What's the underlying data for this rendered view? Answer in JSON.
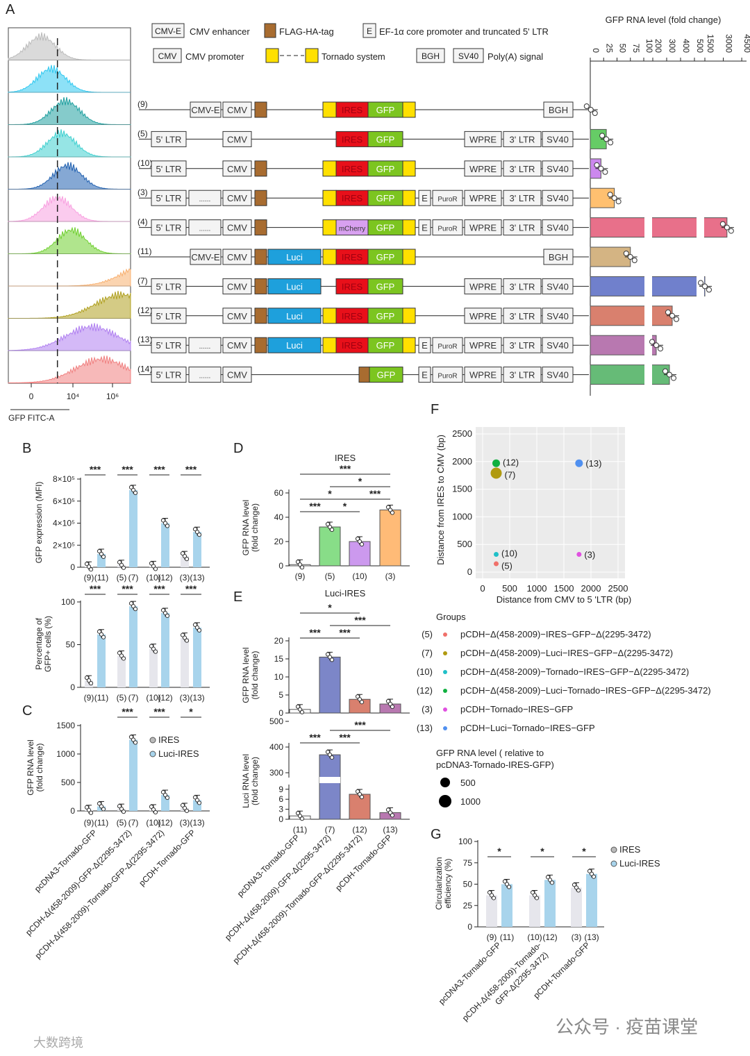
{
  "panel_labels": {
    "a": "A",
    "b": "B",
    "c": "C",
    "d": "D",
    "e": "E",
    "f": "F",
    "g": "G"
  },
  "legend_a": {
    "cmve_box": "CMV-E",
    "cmve_text": "CMV enhancer",
    "flag_text": "FLAG-HA-tag",
    "e_box": "E",
    "e_text": "EF-1α core promoter and truncated 5' LTR",
    "cmv_box": "CMV",
    "cmv_text": "CMV promoter",
    "tornado_text": "Tornado system",
    "bgh_box": "BGH",
    "sv40_box": "SV40",
    "polya_text": "Poly(A) signal"
  },
  "segment_labels": {
    "ltr5": "5' LTR",
    "dots": "......",
    "cmve": "CMV-E",
    "cmv": "CMV",
    "luci": "Luci",
    "ires": "IRES",
    "mcherry": "mCherry",
    "gfp": "GFP",
    "gfp2": "GFP",
    "e": "E",
    "puro": "PuroR",
    "wpre": "WPRE",
    "ltr3": "3' LTR",
    "sv40": "SV40",
    "bgh": "BGH"
  },
  "colors": {
    "flag": "#a86c30",
    "luci": "#1ea0dc",
    "tornado": "#ffe000",
    "ires": "#e8101a",
    "gfp": "#7cc520",
    "mcherry": "#d8a0f0",
    "box": "#f4f4f4",
    "gray_bar": "#e6e6ec",
    "blue_bar": "#a8d4ec"
  },
  "constructs": [
    {
      "id": "(9)",
      "segments": [
        "cmve",
        "cmv",
        "flag",
        "y1",
        "ires",
        "gfp",
        "y2",
        "bgh"
      ],
      "gfp_rna": 1,
      "color": "#ffffff"
    },
    {
      "id": "(5)",
      "segments": [
        "ltr5",
        "cmv",
        "ires",
        "gfp",
        "wpre",
        "ltr3",
        "sv40"
      ],
      "gfp_rna": 30,
      "color": "#66cc66"
    },
    {
      "id": "(10)",
      "segments": [
        "ltr5",
        "cmv",
        "flag",
        "y1",
        "ires",
        "gfp",
        "y2",
        "wpre",
        "ltr3",
        "sv40"
      ],
      "gfp_rna": 20,
      "color": "#cc88ee"
    },
    {
      "id": "(3)",
      "segments": [
        "ltr5",
        "dots",
        "cmv",
        "flag",
        "y1",
        "ires",
        "gfp",
        "y2",
        "e",
        "puro",
        "wpre",
        "ltr3",
        "sv40"
      ],
      "gfp_rna": 45,
      "color": "#ffc070"
    },
    {
      "id": "(4)",
      "segments": [
        "ltr5",
        "dots",
        "cmv",
        "flag",
        "y1",
        "mcherry",
        "gfp",
        "y2",
        "e",
        "puro",
        "wpre",
        "ltr3",
        "sv40"
      ],
      "gfp_rna": 3300,
      "color": "#e8708a"
    },
    {
      "id": "(11)",
      "segments": [
        "cmve",
        "cmv",
        "flag",
        "luci",
        "y1",
        "ires",
        "gfp",
        "y2",
        "bgh"
      ],
      "gfp_rna": 75,
      "color": "#d4b483"
    },
    {
      "id": "(7)",
      "segments": [
        "ltr5",
        "cmv",
        "flag",
        "luci",
        "ires",
        "gfp",
        "wpre",
        "ltr3",
        "sv40"
      ],
      "gfp_rna": 1500,
      "color": "#7080cc"
    },
    {
      "id": "(12)",
      "segments": [
        "ltr5",
        "cmv",
        "flag",
        "luci",
        "y1",
        "ires",
        "gfp",
        "y2",
        "wpre",
        "ltr3",
        "sv40"
      ],
      "gfp_rna": 340,
      "color": "#d9806e"
    },
    {
      "id": "(13)",
      "segments": [
        "ltr5",
        "dots",
        "cmv",
        "flag",
        "luci",
        "y1",
        "ires",
        "gfp",
        "y2",
        "e",
        "puro",
        "wpre",
        "ltr3",
        "sv40"
      ],
      "gfp_rna": 225,
      "color": "#b878b0"
    },
    {
      "id": "(14)",
      "segments": [
        "ltr5",
        "dots",
        "cmv",
        "flag2",
        "gfp2",
        "e",
        "puro",
        "wpre",
        "ltr3",
        "sv40"
      ],
      "gfp_rna": 320,
      "color": "#66bb77"
    }
  ],
  "chart_data": [
    {
      "id": "a-histogram",
      "type": "area",
      "xlabel": "GFP FITC-A",
      "xticks": [
        "0",
        "10⁴",
        "10⁶"
      ],
      "series_colors": [
        "#bbbbbb",
        "#30c8f0",
        "#20a0a0",
        "#40d0d0",
        "#2060b0",
        "#f8a0e0",
        "#70d030",
        "#f8b070",
        "#b0a020",
        "#b080f0",
        "#f08080"
      ],
      "peaks_log10": [
        0.5,
        1.0,
        1.7,
        1.5,
        1.8,
        1.3,
        2.0,
        6.0,
        4.5,
        3.0,
        3.5
      ],
      "gate_log10": 1.3
    },
    {
      "id": "a-gfp-rna",
      "type": "bar",
      "title": "GFP RNA level (fold change)",
      "xticks": [
        "0",
        "25",
        "50",
        "75",
        "100",
        "200",
        "300",
        "400",
        "500",
        "1500",
        "3000",
        "4500"
      ],
      "categories": [
        "(9)",
        "(5)",
        "(10)",
        "(3)",
        "(4)",
        "(11)",
        "(7)",
        "(12)",
        "(13)",
        "(14)"
      ],
      "values": [
        1,
        30,
        20,
        45,
        3300,
        75,
        1500,
        340,
        225,
        320
      ]
    },
    {
      "id": "b-mfi",
      "type": "bar",
      "ylabel": [
        "GFP expression (MFI)"
      ],
      "yticks": [
        "0",
        "2×10⁵",
        "4×10⁵",
        "6×10⁵",
        "8×10⁵"
      ],
      "ytick_values": [
        0,
        200000,
        400000,
        600000,
        800000
      ],
      "ylim": [
        0,
        800000
      ],
      "categories": [
        "(9)",
        "(11)",
        "(5)",
        "(7)",
        "(10)",
        "(12)",
        "(3)",
        "(13)"
      ],
      "values": [
        5000,
        120000,
        20000,
        700000,
        10000,
        400000,
        100000,
        320000
      ],
      "pair_sig": [
        "***",
        "***",
        "***",
        "***"
      ]
    },
    {
      "id": "b-percent",
      "type": "bar",
      "ylabel": [
        "Percentage of",
        "GFP+ cells (%)"
      ],
      "yticks": [
        "0",
        "50",
        "100"
      ],
      "ytick_values": [
        0,
        50,
        100
      ],
      "ylim": [
        0,
        100
      ],
      "categories": [
        "(9)",
        "(11)",
        "(5)",
        "(7)",
        "(10)",
        "(12)",
        "(3)",
        "(13)"
      ],
      "values": [
        8,
        62,
        37,
        95,
        45,
        87,
        58,
        70
      ],
      "pair_sig": [
        "***",
        "***",
        "***",
        "***"
      ]
    },
    {
      "id": "c-gfp-rna",
      "type": "bar",
      "ylabel": [
        "GFP RNA level",
        "(fold change)"
      ],
      "yticks": [
        "0",
        "500",
        "1000",
        "1500"
      ],
      "ytick_values": [
        0,
        500,
        1000,
        1500
      ],
      "ylim": [
        0,
        1500
      ],
      "categories": [
        "(9)",
        "(11)",
        "(5)",
        "(7)",
        "(10)",
        "(12)",
        "(3)",
        "(13)"
      ],
      "values": [
        15,
        80,
        35,
        1250,
        25,
        280,
        50,
        190
      ],
      "pair_sig": [
        "",
        "***",
        "***",
        "*"
      ],
      "legend": [
        "IRES",
        "Luci-IRES"
      ],
      "xnames": [
        "pcDNA3-Tornado-GFP",
        "pCDH-Δ(458-2009)-GFP-Δ(2295-3472)",
        "pCDH-Δ(458-2009)-Tornado-GFP-Δ(2295-3472)",
        "pCDH-Tornado-GFP"
      ]
    },
    {
      "id": "d-ires",
      "type": "bar",
      "title": "IRES",
      "ylabel": [
        "GFP RNA level",
        "(fold change)"
      ],
      "yticks": [
        "0",
        "20",
        "40",
        "60"
      ],
      "ytick_values": [
        0,
        20,
        40,
        60
      ],
      "ylim": [
        0,
        60
      ],
      "categories": [
        "(9)",
        "(5)",
        "(10)",
        "(3)"
      ],
      "values": [
        1,
        32,
        20,
        46
      ],
      "bar_colors": [
        "#ffffff",
        "#88dd88",
        "#cc99ee",
        "#ffbb77"
      ],
      "sig": [
        {
          "from": 0,
          "to": 3,
          "label": "***",
          "tier": 4
        },
        {
          "from": 1,
          "to": 3,
          "label": "*",
          "tier": 3
        },
        {
          "from": 0,
          "to": 2,
          "label": "*",
          "tier": 2
        },
        {
          "from": 2,
          "to": 3,
          "label": "***",
          "tier": 2
        },
        {
          "from": 0,
          "to": 1,
          "label": "***",
          "tier": 1
        },
        {
          "from": 1,
          "to": 2,
          "label": "*",
          "tier": 1
        }
      ]
    },
    {
      "id": "e-luci-ires-gfp",
      "type": "bar",
      "title": "Luci-IRES",
      "ylabel": [
        "GFP RNA level",
        "(fold change)"
      ],
      "yticks": [
        "0",
        "5",
        "10",
        "15",
        "20"
      ],
      "ytick_values": [
        0,
        5,
        10,
        15,
        20
      ],
      "ylim": [
        0,
        20
      ],
      "categories": [
        "(11)",
        "(7)",
        "(12)",
        "(13)"
      ],
      "values": [
        1,
        15.5,
        3.8,
        2.5
      ],
      "bar_colors": [
        "#ffffff",
        "#7c86c8",
        "#d9806e",
        "#b878b0"
      ],
      "sig": [
        {
          "from": 0,
          "to": 2,
          "label": "*",
          "tier": 3
        },
        {
          "from": 1,
          "to": 3,
          "label": "***",
          "tier": 2
        },
        {
          "from": 0,
          "to": 1,
          "label": "***",
          "tier": 1
        },
        {
          "from": 1,
          "to": 2,
          "label": "***",
          "tier": 1
        }
      ]
    },
    {
      "id": "e-luci-rna",
      "type": "bar",
      "ylabel": [
        "Luci RNA level",
        "(fold change)"
      ],
      "yticks": [
        "0",
        "3",
        "6",
        "9",
        "300",
        "400",
        "500"
      ],
      "ytick_values": [
        0,
        3,
        6,
        9,
        300,
        400,
        500
      ],
      "categories": [
        "(11)",
        "(7)",
        "(12)",
        "(13)"
      ],
      "values": [
        1,
        370,
        7.5,
        2
      ],
      "bar_colors": [
        "#ffffff",
        "#7c86c8",
        "#d9806e",
        "#b878b0"
      ],
      "sig": [
        {
          "from": 1,
          "to": 3,
          "label": "***",
          "tier": 2
        },
        {
          "from": 0,
          "to": 1,
          "label": "***",
          "tier": 1
        },
        {
          "from": 1,
          "to": 2,
          "label": "***",
          "tier": 1
        }
      ],
      "xnames": [
        "pcDNA3-Tornado-GFP",
        "pCDH-Δ(458-2009)-GFP-Δ(2295-3472)",
        "pCDH-Δ(458-2009)-Tornado-GFP-Δ(2295-3472)",
        "pCDH-Tornado-GFP"
      ]
    },
    {
      "id": "f-scatter",
      "type": "scatter",
      "xlabel": "Distance from CMV to 5 'LTR (bp)",
      "ylabel": "Distance from IRES to CMV (bp)",
      "xticks": [
        "0",
        "500",
        "1000",
        "1500",
        "2000",
        "2500"
      ],
      "yticks": [
        "0",
        "500",
        "1000",
        "1500",
        "2000",
        "2500"
      ],
      "xlim": [
        0,
        2500
      ],
      "ylim": [
        0,
        2500
      ],
      "points": [
        {
          "label": "(5)",
          "x": 250,
          "y": 150,
          "rna": 30,
          "color": "#f0706a"
        },
        {
          "label": "(10)",
          "x": 250,
          "y": 320,
          "rna": 20,
          "color": "#20c0c8"
        },
        {
          "label": "(12)",
          "x": 250,
          "y": 1970,
          "rna": 340,
          "color": "#10b040"
        },
        {
          "label": "(7)",
          "x": 250,
          "y": 1790,
          "rna": 1500,
          "color": "#b09a10"
        },
        {
          "label": "(13)",
          "x": 1780,
          "y": 1970,
          "rna": 225,
          "color": "#5090f0"
        },
        {
          "label": "(3)",
          "x": 1780,
          "y": 320,
          "rna": 45,
          "color": "#e050e0"
        }
      ],
      "groups_title": "Groups",
      "groups": [
        {
          "id": "(5)",
          "name": "pCDH−Δ(458-2009)−IRES−GFP−Δ(2295-3472)",
          "color": "#f0706a"
        },
        {
          "id": "(7)",
          "name": "pCDH−Δ(458-2009)−Luci−IRES−GFP−Δ(2295-3472)",
          "color": "#b09a10"
        },
        {
          "id": "(10)",
          "name": "pCDH−Δ(458-2009)−Tornado−IRES−GFP−Δ(2295-3472)",
          "color": "#20c0c8"
        },
        {
          "id": "(12)",
          "name": "pCDH−Δ(458-2009)−Luci−Tornado−IRES−GFP−Δ(2295-3472)",
          "color": "#10b040"
        },
        {
          "id": "(3)",
          "name": "pCDH−Tornado−IRES−GFP",
          "color": "#e050e0"
        },
        {
          "id": "(13)",
          "name": "pCDH−Luci−Tornado−IRES−GFP",
          "color": "#5090f0"
        }
      ],
      "size_title": [
        "GFP RNA level ( relative to",
        "pcDNA3-Tornado-IRES-GFP)"
      ],
      "size_legend": [
        {
          "label": "500",
          "value": 500
        },
        {
          "label": "1000",
          "value": 1000
        }
      ]
    },
    {
      "id": "g-circularization",
      "type": "bar",
      "ylabel": [
        "Circularization",
        "efficiency (%)"
      ],
      "yticks": [
        "0",
        "25",
        "50",
        "75",
        "100"
      ],
      "ytick_values": [
        0,
        25,
        50,
        75,
        100
      ],
      "ylim": [
        0,
        100
      ],
      "categories": [
        "(9)",
        "(11)",
        "(10)",
        "(12)",
        "(3)",
        "(13)"
      ],
      "values": [
        37,
        50,
        37,
        55,
        46,
        62
      ],
      "pair_sig": [
        "*",
        "*",
        "*"
      ],
      "legend": [
        "IRES",
        "Luci-IRES"
      ],
      "xnames": [
        "pcDNA3-Tornado-GFP",
        "pCDH-Δ(458-2009)-Tornado-",
        "GFP-Δ(2295-3472)",
        "pCDH-Tornado-GFP"
      ]
    }
  ],
  "watermarks": {
    "right": "公众号 · 疫苗课堂",
    "left": "大数跨境"
  }
}
